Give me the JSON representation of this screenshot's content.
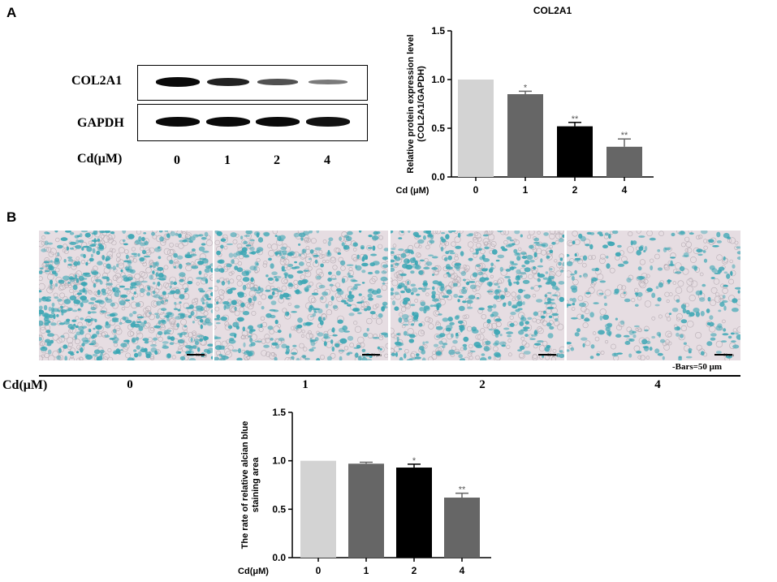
{
  "panel_a": {
    "letter": "A",
    "blot": {
      "rows": [
        {
          "label": "COL2A1",
          "intensities": [
            1.0,
            0.85,
            0.55,
            0.3
          ]
        },
        {
          "label": "GAPDH",
          "intensities": [
            1.0,
            1.0,
            1.0,
            0.95
          ]
        }
      ],
      "cd_label": "Cd(μM)",
      "lanes": [
        "0",
        "1",
        "2",
        "4"
      ]
    }
  },
  "panel_b": {
    "letter": "B",
    "images_cd_label": "Cd(μM)",
    "image_labels": [
      "0",
      "1",
      "2",
      "4"
    ],
    "image_density": [
      1.0,
      0.72,
      0.78,
      0.45
    ],
    "scale_text": "50 μm",
    "bars_text": "-Bars=50 μm"
  },
  "colors": {
    "bar_0": "#d3d3d3",
    "bar_1": "#666666",
    "bar_2": "#000000",
    "bar_4": "#666666",
    "stain": "#3aa6b4",
    "background_cells": "#e6dde2"
  },
  "chart_data": [
    {
      "type": "bar",
      "title": "COL2A1",
      "xlabel": "Cd (μM)",
      "ylabel": "Relative protein expression level (COL2A1/GAPDH)",
      "ylabel_lines": [
        "Relative protein expression level",
        "(COL2A1/GAPDH)"
      ],
      "categories": [
        "0",
        "1",
        "2",
        "4"
      ],
      "values": [
        1.0,
        0.85,
        0.52,
        0.31
      ],
      "errors": [
        0.0,
        0.03,
        0.04,
        0.08
      ],
      "significance": [
        "",
        "*",
        "**",
        "**"
      ],
      "ylim": [
        0,
        1.5
      ],
      "yticks": [
        "0.0",
        "0.5",
        "1.0",
        "1.5"
      ]
    },
    {
      "type": "bar",
      "title": "",
      "xlabel": "Cd(μM)",
      "ylabel": "The rate of relative alcian blue staining area",
      "ylabel_lines": [
        "The rate of relative alcian blue",
        "staining area"
      ],
      "categories": [
        "0",
        "1",
        "2",
        "4"
      ],
      "values": [
        1.0,
        0.97,
        0.93,
        0.62
      ],
      "errors": [
        0.0,
        0.015,
        0.035,
        0.045
      ],
      "significance": [
        "",
        "",
        "*",
        "**"
      ],
      "ylim": [
        0,
        1.5
      ],
      "yticks": [
        "0.0",
        "0.5",
        "1.0",
        "1.5"
      ]
    }
  ]
}
